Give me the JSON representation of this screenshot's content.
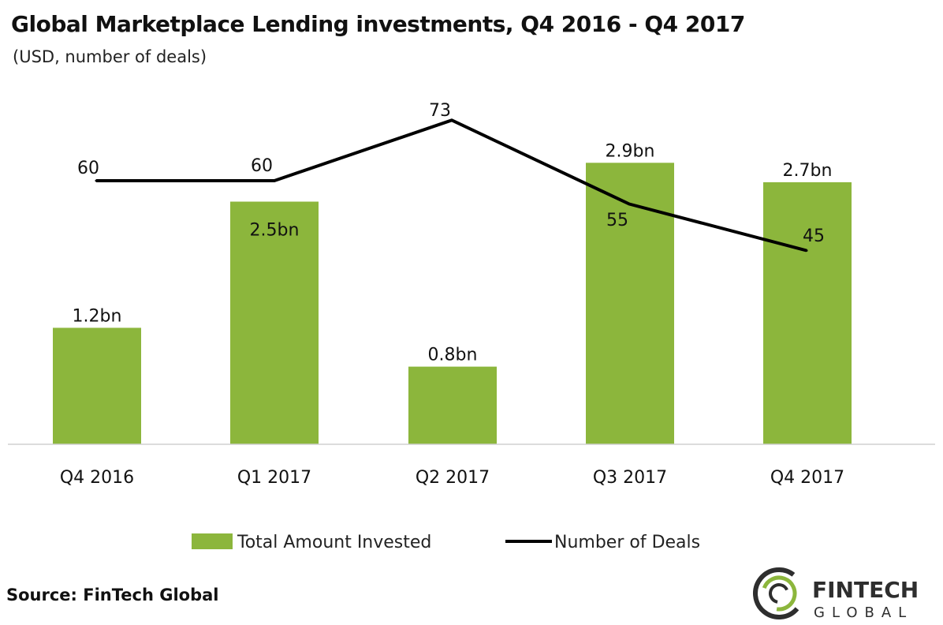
{
  "chart_data": {
    "type": "bar",
    "title": "Global Marketplace Lending investments, Q4 2016 - Q4 2017",
    "subtitle": "(USD, number of deals)",
    "categories": [
      "Q4 2016",
      "Q1 2017",
      "Q2 2017",
      "Q3 2017",
      "Q4 2017"
    ],
    "series": [
      {
        "name": "Total Amount Invested",
        "type": "bar",
        "unit": "bn",
        "values": [
          1.2,
          2.5,
          0.8,
          2.9,
          2.7
        ],
        "labels": [
          "1.2bn",
          "2.5bn",
          "0.8bn",
          "2.9bn",
          "2.7bn"
        ],
        "color": "#8cb63c"
      },
      {
        "name": "Number of Deals",
        "type": "line",
        "values": [
          60,
          60,
          73,
          55,
          45
        ],
        "labels": [
          "60",
          "60",
          "73",
          "55",
          "45"
        ],
        "color": "#000000"
      }
    ],
    "grid": false,
    "legend": "bottom"
  },
  "source": "Source: FinTech Global",
  "logo": {
    "line1": "FINTECH",
    "line2": "GLOBAL"
  }
}
